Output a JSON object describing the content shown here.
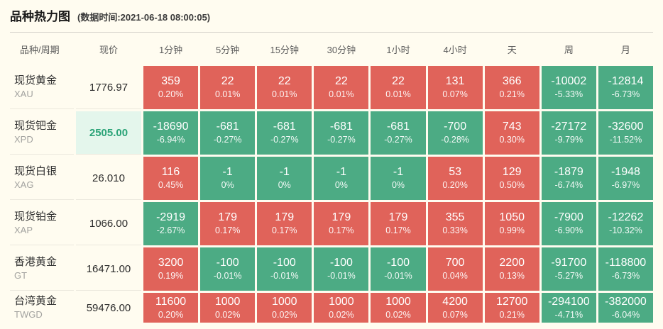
{
  "header": {
    "title": "品种热力图",
    "timestamp": "(数据时间:2021-06-18 08:00:05)"
  },
  "table": {
    "columns": [
      "品种/周期",
      "现价",
      "1分钟",
      "5分钟",
      "15分钟",
      "30分钟",
      "1小时",
      "4小时",
      "天",
      "周",
      "月"
    ],
    "colors": {
      "up": "#e0635a",
      "down": "#4cab84",
      "highlight_bg": "#e4f6ec",
      "highlight_text": "#2aa377"
    },
    "rows": [
      {
        "name": "现货黄金",
        "symbol": "XAU",
        "price": "1776.97",
        "highlight": false,
        "changes": [
          {
            "value": "359",
            "pct": "0.20%",
            "dir": "up"
          },
          {
            "value": "22",
            "pct": "0.01%",
            "dir": "up"
          },
          {
            "value": "22",
            "pct": "0.01%",
            "dir": "up"
          },
          {
            "value": "22",
            "pct": "0.01%",
            "dir": "up"
          },
          {
            "value": "22",
            "pct": "0.01%",
            "dir": "up"
          },
          {
            "value": "131",
            "pct": "0.07%",
            "dir": "up"
          },
          {
            "value": "366",
            "pct": "0.21%",
            "dir": "up"
          },
          {
            "value": "-10002",
            "pct": "-5.33%",
            "dir": "down"
          },
          {
            "value": "-12814",
            "pct": "-6.73%",
            "dir": "down"
          }
        ]
      },
      {
        "name": "现货钯金",
        "symbol": "XPD",
        "price": "2505.00",
        "highlight": true,
        "changes": [
          {
            "value": "-18690",
            "pct": "-6.94%",
            "dir": "down"
          },
          {
            "value": "-681",
            "pct": "-0.27%",
            "dir": "down"
          },
          {
            "value": "-681",
            "pct": "-0.27%",
            "dir": "down"
          },
          {
            "value": "-681",
            "pct": "-0.27%",
            "dir": "down"
          },
          {
            "value": "-681",
            "pct": "-0.27%",
            "dir": "down"
          },
          {
            "value": "-700",
            "pct": "-0.28%",
            "dir": "down"
          },
          {
            "value": "743",
            "pct": "0.30%",
            "dir": "up"
          },
          {
            "value": "-27172",
            "pct": "-9.79%",
            "dir": "down"
          },
          {
            "value": "-32600",
            "pct": "-11.52%",
            "dir": "down"
          }
        ]
      },
      {
        "name": "现货白银",
        "symbol": "XAG",
        "price": "26.010",
        "highlight": false,
        "changes": [
          {
            "value": "116",
            "pct": "0.45%",
            "dir": "up"
          },
          {
            "value": "-1",
            "pct": "0%",
            "dir": "down"
          },
          {
            "value": "-1",
            "pct": "0%",
            "dir": "down"
          },
          {
            "value": "-1",
            "pct": "0%",
            "dir": "down"
          },
          {
            "value": "-1",
            "pct": "0%",
            "dir": "down"
          },
          {
            "value": "53",
            "pct": "0.20%",
            "dir": "up"
          },
          {
            "value": "129",
            "pct": "0.50%",
            "dir": "up"
          },
          {
            "value": "-1879",
            "pct": "-6.74%",
            "dir": "down"
          },
          {
            "value": "-1948",
            "pct": "-6.97%",
            "dir": "down"
          }
        ]
      },
      {
        "name": "现货铂金",
        "symbol": "XAP",
        "price": "1066.00",
        "highlight": false,
        "changes": [
          {
            "value": "-2919",
            "pct": "-2.67%",
            "dir": "down"
          },
          {
            "value": "179",
            "pct": "0.17%",
            "dir": "up"
          },
          {
            "value": "179",
            "pct": "0.17%",
            "dir": "up"
          },
          {
            "value": "179",
            "pct": "0.17%",
            "dir": "up"
          },
          {
            "value": "179",
            "pct": "0.17%",
            "dir": "up"
          },
          {
            "value": "355",
            "pct": "0.33%",
            "dir": "up"
          },
          {
            "value": "1050",
            "pct": "0.99%",
            "dir": "up"
          },
          {
            "value": "-7900",
            "pct": "-6.90%",
            "dir": "down"
          },
          {
            "value": "-12262",
            "pct": "-10.32%",
            "dir": "down"
          }
        ]
      },
      {
        "name": "香港黄金",
        "symbol": "GT",
        "price": "16471.00",
        "highlight": false,
        "changes": [
          {
            "value": "3200",
            "pct": "0.19%",
            "dir": "up"
          },
          {
            "value": "-100",
            "pct": "-0.01%",
            "dir": "down"
          },
          {
            "value": "-100",
            "pct": "-0.01%",
            "dir": "down"
          },
          {
            "value": "-100",
            "pct": "-0.01%",
            "dir": "down"
          },
          {
            "value": "-100",
            "pct": "-0.01%",
            "dir": "down"
          },
          {
            "value": "700",
            "pct": "0.04%",
            "dir": "up"
          },
          {
            "value": "2200",
            "pct": "0.13%",
            "dir": "up"
          },
          {
            "value": "-91700",
            "pct": "-5.27%",
            "dir": "down"
          },
          {
            "value": "-118800",
            "pct": "-6.73%",
            "dir": "down"
          }
        ]
      },
      {
        "name": "台湾黄金",
        "symbol": "TWGD",
        "price": "59476.00",
        "highlight": false,
        "changes": [
          {
            "value": "11600",
            "pct": "0.20%",
            "dir": "up"
          },
          {
            "value": "1000",
            "pct": "0.02%",
            "dir": "up"
          },
          {
            "value": "1000",
            "pct": "0.02%",
            "dir": "up"
          },
          {
            "value": "1000",
            "pct": "0.02%",
            "dir": "up"
          },
          {
            "value": "1000",
            "pct": "0.02%",
            "dir": "up"
          },
          {
            "value": "4200",
            "pct": "0.07%",
            "dir": "up"
          },
          {
            "value": "12700",
            "pct": "0.21%",
            "dir": "up"
          },
          {
            "value": "-294100",
            "pct": "-4.71%",
            "dir": "down"
          },
          {
            "value": "-382000",
            "pct": "-6.04%",
            "dir": "down"
          }
        ]
      }
    ]
  }
}
